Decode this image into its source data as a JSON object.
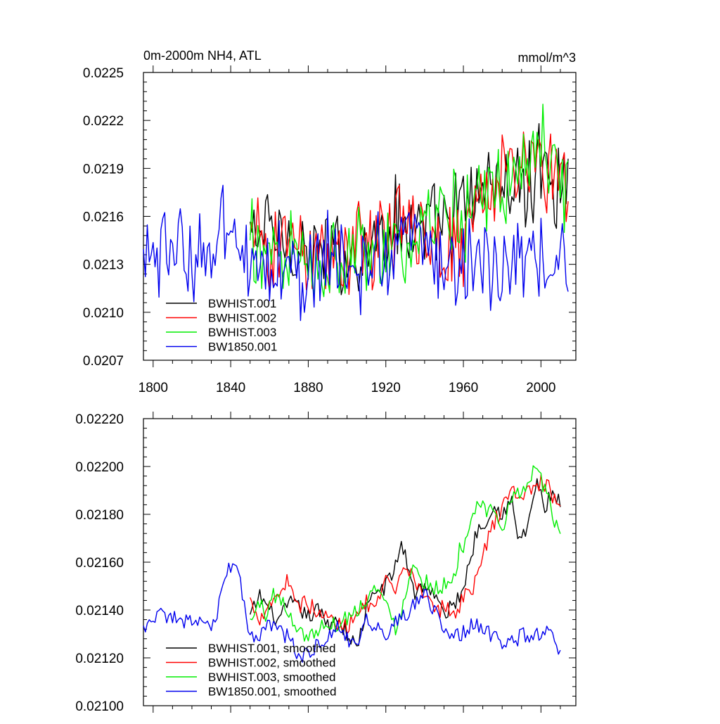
{
  "chart_data": [
    {
      "type": "line",
      "title": "0m-2000m NH4, ATL",
      "units_label": "mmol/m^3",
      "xlabel": "",
      "ylabel": "",
      "xlim": [
        1795,
        2018
      ],
      "ylim": [
        0.0207,
        0.0225
      ],
      "x_ticks": [
        1800,
        1840,
        1880,
        1920,
        1960,
        2000
      ],
      "x_tick_labels": [
        "1800",
        "1840",
        "1880",
        "1920",
        "1960",
        "2000"
      ],
      "y_ticks": [
        0.0207,
        0.021,
        0.0213,
        0.0216,
        0.0219,
        0.0222,
        0.0225
      ],
      "y_tick_labels": [
        "0.0207",
        "0.0210",
        "0.0213",
        "0.0216",
        "0.0219",
        "0.0222",
        "0.0225"
      ],
      "legend_position": "bottom-left",
      "series": [
        {
          "name": "BWHIST.001",
          "color": "#000000",
          "noisy": true,
          "x": [
            1850,
            1860,
            1870,
            1880,
            1890,
            1900,
            1910,
            1920,
            1926,
            1930,
            1940,
            1950,
            1960,
            1967,
            1970,
            1980,
            1990,
            2000,
            2008,
            2014
          ],
          "y": [
            0.02148,
            0.02152,
            0.02144,
            0.02138,
            0.02136,
            0.02134,
            0.02142,
            0.0215,
            0.0216,
            0.02155,
            0.0215,
            0.02152,
            0.02165,
            0.02178,
            0.0218,
            0.0218,
            0.02175,
            0.0219,
            0.02185,
            0.0218
          ]
        },
        {
          "name": "BWHIST.002",
          "color": "#ff0000",
          "noisy": true,
          "x": [
            1850,
            1860,
            1870,
            1880,
            1890,
            1900,
            1910,
            1920,
            1930,
            1940,
            1950,
            1960,
            1970,
            1980,
            1990,
            2000,
            2010,
            2014
          ],
          "y": [
            0.0214,
            0.02142,
            0.02148,
            0.0214,
            0.02137,
            0.02135,
            0.02142,
            0.02145,
            0.02155,
            0.0215,
            0.0214,
            0.02148,
            0.0217,
            0.02188,
            0.02192,
            0.0219,
            0.02188,
            0.02182
          ]
        },
        {
          "name": "BWHIST.003",
          "color": "#00ee00",
          "noisy": true,
          "x": [
            1850,
            1860,
            1870,
            1880,
            1890,
            1900,
            1910,
            1920,
            1930,
            1940,
            1950,
            1960,
            1970,
            1980,
            1990,
            2000,
            2010,
            2014
          ],
          "y": [
            0.02137,
            0.02145,
            0.0214,
            0.0213,
            0.02134,
            0.02135,
            0.0214,
            0.02148,
            0.02132,
            0.0215,
            0.02155,
            0.02162,
            0.02182,
            0.0218,
            0.02195,
            0.02198,
            0.02185,
            0.02172
          ]
        },
        {
          "name": "BW1850.001",
          "color": "#0000ee",
          "noisy": true,
          "x": [
            1795,
            1800,
            1810,
            1820,
            1830,
            1835,
            1840,
            1845,
            1850,
            1860,
            1870,
            1880,
            1890,
            1900,
            1910,
            1920,
            1930,
            1940,
            1950,
            1960,
            1970,
            1980,
            1990,
            2000,
            2010,
            2014
          ],
          "y": [
            0.02132,
            0.02135,
            0.02138,
            0.02135,
            0.02138,
            0.0215,
            0.0216,
            0.02145,
            0.02128,
            0.02132,
            0.02125,
            0.0212,
            0.02135,
            0.02132,
            0.0213,
            0.02135,
            0.02137,
            0.02145,
            0.0213,
            0.0213,
            0.02135,
            0.0213,
            0.02127,
            0.0213,
            0.02133,
            0.02122
          ]
        }
      ]
    },
    {
      "type": "line",
      "title": "",
      "xlabel": "",
      "ylabel": "",
      "xlim": [
        1795,
        2018
      ],
      "ylim": [
        0.021,
        0.0222
      ],
      "x_ticks": [
        1800,
        1840,
        1880,
        1920,
        1960,
        2000
      ],
      "x_tick_labels": [],
      "y_ticks": [
        0.021,
        0.0212,
        0.0214,
        0.0216,
        0.0218,
        0.022,
        0.0222
      ],
      "y_tick_labels": [
        "0.02100",
        "0.02120",
        "0.02140",
        "0.02160",
        "0.02180",
        "0.02200",
        "0.02220"
      ],
      "legend_position": "bottom-left",
      "series": [
        {
          "name": "BWHIST.001, smoothed",
          "color": "#000000",
          "x": [
            1850,
            1855,
            1860,
            1865,
            1870,
            1875,
            1880,
            1885,
            1890,
            1895,
            1900,
            1905,
            1910,
            1915,
            1920,
            1925,
            1928,
            1932,
            1935,
            1940,
            1945,
            1950,
            1955,
            1960,
            1963,
            1967,
            1970,
            1975,
            1980,
            1985,
            1988,
            1992,
            1995,
            1998,
            2002,
            2005,
            2010
          ],
          "y": [
            0.02137,
            0.02146,
            0.0214,
            0.02135,
            0.02143,
            0.02141,
            0.02137,
            0.0214,
            0.02134,
            0.02137,
            0.0213,
            0.02124,
            0.0214,
            0.02148,
            0.0215,
            0.02158,
            0.02168,
            0.02157,
            0.02147,
            0.02151,
            0.02146,
            0.02138,
            0.02142,
            0.02149,
            0.0216,
            0.02173,
            0.02176,
            0.02183,
            0.02181,
            0.02185,
            0.0217,
            0.02172,
            0.02183,
            0.02193,
            0.02182,
            0.02188,
            0.02185
          ]
        },
        {
          "name": "BWHIST.002, smoothed",
          "color": "#ff0000",
          "x": [
            1850,
            1855,
            1860,
            1865,
            1870,
            1875,
            1880,
            1885,
            1890,
            1895,
            1900,
            1905,
            1910,
            1915,
            1920,
            1925,
            1930,
            1935,
            1940,
            1945,
            1950,
            1955,
            1960,
            1965,
            1970,
            1975,
            1980,
            1985,
            1990,
            1995,
            2000,
            2005,
            2010
          ],
          "y": [
            0.02144,
            0.02137,
            0.02143,
            0.02147,
            0.02153,
            0.02142,
            0.02143,
            0.02138,
            0.02137,
            0.02134,
            0.02133,
            0.0214,
            0.02143,
            0.0214,
            0.02152,
            0.02147,
            0.02157,
            0.02153,
            0.02147,
            0.02138,
            0.02142,
            0.02138,
            0.02145,
            0.0215,
            0.02162,
            0.02175,
            0.02183,
            0.0219,
            0.02188,
            0.0219,
            0.02194,
            0.0219,
            0.0218
          ]
        },
        {
          "name": "BWHIST.003, smoothed",
          "color": "#00ee00",
          "x": [
            1850,
            1855,
            1858,
            1862,
            1866,
            1870,
            1875,
            1880,
            1885,
            1890,
            1895,
            1900,
            1905,
            1910,
            1915,
            1920,
            1925,
            1928,
            1932,
            1935,
            1940,
            1945,
            1950,
            1955,
            1958,
            1962,
            1965,
            1968,
            1972,
            1975,
            1980,
            1985,
            1990,
            1994,
            1998,
            2002,
            2006,
            2010
          ],
          "y": [
            0.02135,
            0.02143,
            0.02138,
            0.02147,
            0.02144,
            0.02137,
            0.02133,
            0.02128,
            0.02132,
            0.02135,
            0.02134,
            0.02137,
            0.0214,
            0.02145,
            0.0215,
            0.02142,
            0.02133,
            0.0214,
            0.02155,
            0.02158,
            0.02152,
            0.0215,
            0.0215,
            0.02153,
            0.02165,
            0.0217,
            0.02177,
            0.02185,
            0.0218,
            0.02182,
            0.02175,
            0.02185,
            0.0219,
            0.02196,
            0.022,
            0.0219,
            0.0218,
            0.0217
          ]
        },
        {
          "name": "BW1850.001, smoothed",
          "color": "#0000ee",
          "x": [
            1795,
            1800,
            1805,
            1810,
            1815,
            1820,
            1825,
            1830,
            1835,
            1838,
            1842,
            1845,
            1850,
            1855,
            1860,
            1865,
            1870,
            1875,
            1880,
            1885,
            1890,
            1895,
            1900,
            1905,
            1910,
            1915,
            1920,
            1925,
            1930,
            1935,
            1940,
            1945,
            1950,
            1955,
            1960,
            1965,
            1970,
            1975,
            1980,
            1985,
            1990,
            1995,
            2000,
            2005,
            2010
          ],
          "y": [
            0.02132,
            0.02136,
            0.02138,
            0.02137,
            0.02133,
            0.02137,
            0.02135,
            0.0213,
            0.02145,
            0.02157,
            0.0216,
            0.0215,
            0.02127,
            0.0213,
            0.02135,
            0.02132,
            0.02128,
            0.0212,
            0.02122,
            0.02125,
            0.02128,
            0.02134,
            0.02128,
            0.02124,
            0.02135,
            0.02133,
            0.0213,
            0.02135,
            0.02137,
            0.02142,
            0.02146,
            0.0214,
            0.02134,
            0.02128,
            0.02131,
            0.02135,
            0.02132,
            0.02129,
            0.02126,
            0.02126,
            0.0213,
            0.0213,
            0.0213,
            0.02134,
            0.02122
          ]
        }
      ]
    }
  ]
}
